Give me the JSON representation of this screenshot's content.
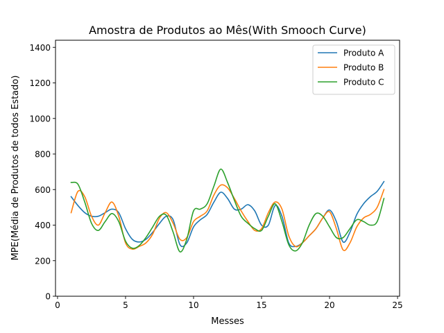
{
  "chart_data": {
    "type": "line",
    "title": "Amostra de Produtos ao Mês(With Smooch Curve)",
    "xlabel": "Messes",
    "ylabel": "MPE(Média de Produtos de todos Estado)",
    "xlim": [
      -0.15,
      25.15
    ],
    "ylim": [
      0,
      1440
    ],
    "xticks": [
      0,
      5,
      10,
      15,
      20,
      25
    ],
    "xtick_labels": [
      "0",
      "5",
      "10",
      "15",
      "20",
      "25"
    ],
    "yticks": [
      0,
      200,
      400,
      600,
      800,
      1000,
      1200,
      1400
    ],
    "ytick_labels": [
      "0",
      "200",
      "400",
      "600",
      "800",
      "1000",
      "1200",
      "1400"
    ],
    "grid": false,
    "legend_position": "top-right",
    "series": [
      {
        "name": "Produto A",
        "color": "#1f77b4",
        "x": [
          1,
          1.5,
          2,
          2.5,
          3,
          3.5,
          4,
          4.5,
          5,
          5.5,
          6,
          6.5,
          7,
          7.5,
          8,
          8.5,
          9,
          9.5,
          10,
          10.5,
          11,
          11.5,
          12,
          12.5,
          13,
          13.5,
          14,
          14.5,
          15,
          15.5,
          16,
          16.5,
          17,
          17.5,
          18,
          18.5,
          19,
          19.5,
          20,
          20.5,
          21,
          21.5,
          22,
          22.5,
          23,
          23.5,
          24
        ],
        "y": [
          560,
          510,
          470,
          450,
          450,
          470,
          490,
          470,
          380,
          320,
          305,
          320,
          360,
          410,
          450,
          430,
          290,
          300,
          390,
          430,
          460,
          530,
          585,
          550,
          490,
          490,
          515,
          480,
          400,
          400,
          510,
          450,
          300,
          280,
          300,
          340,
          380,
          440,
          485,
          420,
          305,
          360,
          460,
          520,
          560,
          590,
          645
        ]
      },
      {
        "name": "Produto B",
        "color": "#ff7f0e",
        "x": [
          1,
          1.5,
          2,
          2.5,
          3,
          3.5,
          4,
          4.5,
          5,
          5.5,
          6,
          6.5,
          7,
          7.5,
          8,
          8.5,
          9,
          9.5,
          10,
          10.5,
          11,
          11.5,
          12,
          12.5,
          13,
          13.5,
          14,
          14.5,
          15,
          15.5,
          16,
          16.5,
          17,
          17.5,
          18,
          18.5,
          19,
          19.5,
          20,
          20.5,
          21,
          21.5,
          22,
          22.5,
          23,
          23.5,
          24
        ],
        "y": [
          470,
          590,
          560,
          450,
          400,
          470,
          530,
          450,
          300,
          265,
          280,
          300,
          350,
          440,
          470,
          410,
          320,
          330,
          420,
          450,
          480,
          570,
          625,
          610,
          550,
          480,
          420,
          370,
          380,
          470,
          530,
          490,
          340,
          280,
          300,
          340,
          380,
          440,
          475,
          380,
          260,
          300,
          390,
          440,
          460,
          500,
          600
        ]
      },
      {
        "name": "Produto C",
        "color": "#2ca02c",
        "x": [
          1,
          1.5,
          2,
          2.5,
          3,
          3.5,
          4,
          4.5,
          5,
          5.5,
          6,
          6.5,
          7,
          7.5,
          8,
          8.5,
          9,
          9.5,
          10,
          10.5,
          11,
          11.5,
          12,
          12.5,
          13,
          13.5,
          14,
          14.5,
          15,
          15.5,
          16,
          16.5,
          17,
          17.5,
          18,
          18.5,
          19,
          19.5,
          20,
          20.5,
          21,
          21.5,
          22,
          22.5,
          23,
          23.5,
          24
        ],
        "y": [
          640,
          630,
          530,
          410,
          370,
          420,
          465,
          420,
          310,
          270,
          285,
          330,
          390,
          450,
          455,
          360,
          250,
          320,
          480,
          490,
          520,
          620,
          715,
          640,
          540,
          450,
          410,
          380,
          370,
          450,
          520,
          420,
          290,
          255,
          300,
          400,
          465,
          450,
          390,
          330,
          330,
          380,
          430,
          420,
          400,
          420,
          550
        ]
      }
    ]
  }
}
